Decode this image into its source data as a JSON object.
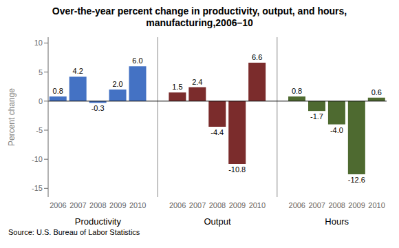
{
  "chart_data": {
    "type": "bar",
    "title": "Over-the-year percent change in productivity, output, and hours,\nmanufacturing,2006–10",
    "ylabel": "Percent change",
    "annotations": [
      "Source: U.S. Bureau of Labor Statistics"
    ],
    "categories": [
      "2006",
      "2007",
      "2008",
      "2009",
      "2010"
    ],
    "series": [
      {
        "name": "Productivity",
        "color": "#4472C4",
        "values": [
          0.8,
          4.2,
          -0.3,
          2.0,
          6.0
        ],
        "value_labels": [
          "0.8",
          "4.2",
          "-0.3",
          "2.0",
          "6.0"
        ]
      },
      {
        "name": "Output",
        "color": "#7B2C2C",
        "values": [
          1.5,
          2.4,
          -4.4,
          -10.8,
          6.6
        ],
        "value_labels": [
          "1.5",
          "2.4",
          "-4.4",
          "-10.8",
          "6.6"
        ]
      },
      {
        "name": "Hours",
        "color": "#4E6A30",
        "values": [
          0.8,
          -1.7,
          -4.0,
          -12.6,
          0.6
        ],
        "value_labels": [
          "0.8",
          "-1.7",
          "-4.0",
          "-12.6",
          "0.6"
        ]
      }
    ],
    "ylim": [
      -16.5,
      11
    ],
    "yticks": [
      -15,
      -10,
      -5,
      0,
      5,
      10
    ],
    "data_labels": true,
    "grid": false
  }
}
